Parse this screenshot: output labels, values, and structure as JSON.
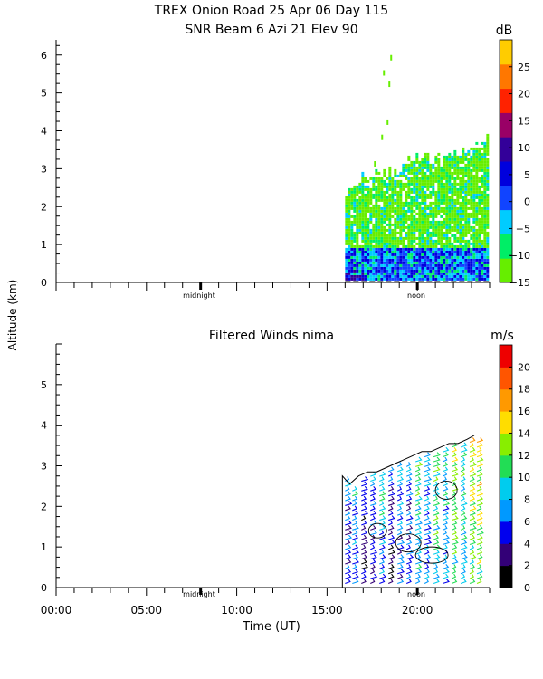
{
  "chart_data": [
    {
      "type": "heatmap",
      "title": "TREX Onion Road  25 Apr 06 Day 115",
      "subtitle": "SNR Beam 6 Azi  21 Elev 90",
      "xlabel": "Time (UT)",
      "ylabel": "Altitude (km)",
      "colorbar_unit": "dB",
      "colorbar_ticks": [
        "25",
        "20",
        "15",
        "10",
        "5",
        "0",
        "−5",
        "−10",
        "−15"
      ],
      "colorbar_range": [
        -15,
        30
      ],
      "colorbar_colors": [
        "#66ee00",
        "#00ee66",
        "#00ccff",
        "#1144ff",
        "#0000dd",
        "#330099",
        "#990066",
        "#ff2200",
        "#ff7700",
        "#ffcc00"
      ],
      "ylim": [
        0,
        6.4
      ],
      "yticks": [
        "0",
        "1",
        "2",
        "3",
        "4",
        "5",
        "6"
      ],
      "day_markers": [
        "midnight",
        "noon"
      ],
      "data_start_hour": 16,
      "data_end_hour": 24,
      "profile_top": [
        {
          "hour": 16.0,
          "top_km": 2.4
        },
        {
          "hour": 16.5,
          "top_km": 2.6
        },
        {
          "hour": 17.0,
          "top_km": 2.8
        },
        {
          "hour": 18.0,
          "top_km": 2.8
        },
        {
          "hour": 19.0,
          "top_km": 3.0
        },
        {
          "hour": 20.0,
          "top_km": 3.3
        },
        {
          "hour": 21.0,
          "top_km": 3.2
        },
        {
          "hour": 22.0,
          "top_km": 3.3
        },
        {
          "hour": 23.0,
          "top_km": 3.4
        },
        {
          "hour": 23.5,
          "top_km": 3.7
        }
      ]
    },
    {
      "type": "heatmap",
      "title": "Filtered Winds nima",
      "xlabel": "Time (UT)",
      "ylabel": "Altitude (km)",
      "colorbar_unit": "m/s",
      "colorbar_ticks": [
        "20",
        "18",
        "16",
        "14",
        "12",
        "10",
        "8",
        "6",
        "4",
        "2",
        "0"
      ],
      "colorbar_range": [
        0,
        22
      ],
      "colorbar_colors": [
        "#000000",
        "#330077",
        "#0000ee",
        "#0099ff",
        "#00ccee",
        "#22dd55",
        "#88ee00",
        "#ffdd00",
        "#ff9900",
        "#ff5500",
        "#ee0000"
      ],
      "ylim": [
        0,
        6
      ],
      "yticks": [
        "0",
        "1",
        "2",
        "3",
        "4",
        "5"
      ],
      "xticks": [
        "00:00",
        "05:00",
        "10:00",
        "15:00",
        "20:00"
      ],
      "day_markers": [
        "midnight",
        "noon"
      ],
      "data_start_hour": 16,
      "data_end_hour": 23.5,
      "barb_columns": [
        {
          "hour": 16.0,
          "top_km": 2.7,
          "speed_ms": 5
        },
        {
          "hour": 16.4,
          "top_km": 2.5,
          "speed_ms": 7
        },
        {
          "hour": 16.9,
          "top_km": 2.7,
          "speed_ms": 4
        },
        {
          "hour": 17.4,
          "top_km": 2.8,
          "speed_ms": 6
        },
        {
          "hour": 17.9,
          "top_km": 2.8,
          "speed_ms": 8
        },
        {
          "hour": 18.4,
          "top_km": 2.9,
          "speed_ms": 3
        },
        {
          "hour": 18.9,
          "top_km": 3.0,
          "speed_ms": 6
        },
        {
          "hour": 19.4,
          "top_km": 3.1,
          "speed_ms": 5
        },
        {
          "hour": 19.9,
          "top_km": 3.2,
          "speed_ms": 9
        },
        {
          "hour": 20.4,
          "top_km": 3.3,
          "speed_ms": 7
        },
        {
          "hour": 20.9,
          "top_km": 3.3,
          "speed_ms": 10
        },
        {
          "hour": 21.4,
          "top_km": 3.4,
          "speed_ms": 8
        },
        {
          "hour": 21.9,
          "top_km": 3.5,
          "speed_ms": 11
        },
        {
          "hour": 22.4,
          "top_km": 3.5,
          "speed_ms": 9
        },
        {
          "hour": 22.9,
          "top_km": 3.6,
          "speed_ms": 12
        },
        {
          "hour": 23.3,
          "top_km": 3.7,
          "speed_ms": 13
        }
      ]
    }
  ]
}
